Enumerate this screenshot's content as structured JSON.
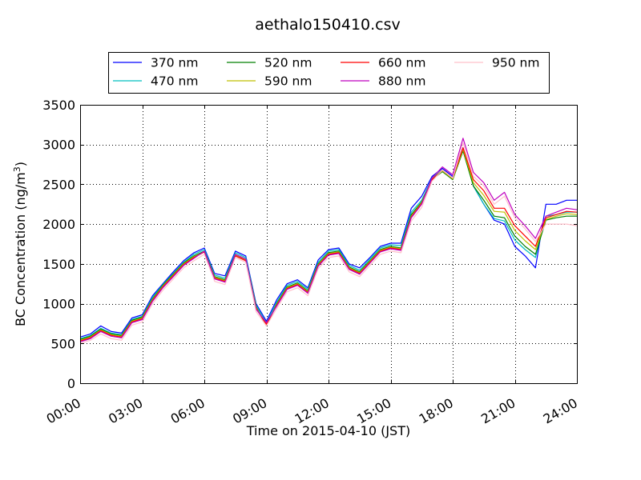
{
  "chart_data": {
    "type": "line",
    "title": "aethalo150410.csv",
    "xlabel": "Time on 2015-04-10 (JST)",
    "ylabel": {
      "prefix": "BC Concentration (ng/m",
      "sup": "3",
      "suffix": ")"
    },
    "xlim": [
      "00:00",
      "24:00"
    ],
    "ylim": [
      0,
      3500
    ],
    "x_ticks": [
      "00:00",
      "03:00",
      "06:00",
      "09:00",
      "12:00",
      "15:00",
      "18:00",
      "21:00",
      "24:00"
    ],
    "y_ticks": [
      0,
      500,
      1000,
      1500,
      2000,
      2500,
      3000,
      3500
    ],
    "grid": true,
    "legend_position": "top",
    "x": [
      "00:00",
      "00:30",
      "01:00",
      "01:30",
      "02:00",
      "02:30",
      "03:00",
      "03:30",
      "04:00",
      "04:30",
      "05:00",
      "05:30",
      "06:00",
      "06:30",
      "07:00",
      "07:30",
      "08:00",
      "08:30",
      "09:00",
      "09:30",
      "10:00",
      "10:30",
      "11:00",
      "11:30",
      "12:00",
      "12:30",
      "13:00",
      "13:30",
      "14:00",
      "14:30",
      "15:00",
      "15:30",
      "16:00",
      "16:30",
      "17:00",
      "17:30",
      "18:00",
      "18:30",
      "19:00",
      "19:30",
      "20:00",
      "20:30",
      "21:00",
      "21:30",
      "22:00",
      "22:30",
      "23:00",
      "23:30",
      "24:00"
    ],
    "series": [
      {
        "name": "370 nm",
        "color": "#0000ff",
        "values": [
          580,
          620,
          720,
          650,
          630,
          820,
          860,
          1100,
          1250,
          1400,
          1540,
          1640,
          1700,
          1380,
          1350,
          1660,
          1600,
          1000,
          780,
          1050,
          1250,
          1300,
          1200,
          1550,
          1680,
          1700,
          1500,
          1450,
          1580,
          1720,
          1760,
          1760,
          2200,
          2350,
          2600,
          2700,
          2600,
          2960,
          2480,
          2250,
          2050,
          2000,
          1720,
          1600,
          1450,
          2250,
          2250,
          2300,
          2300
        ]
      },
      {
        "name": "470 nm",
        "color": "#00bfbf",
        "values": [
          560,
          600,
          690,
          630,
          610,
          800,
          840,
          1080,
          1240,
          1380,
          1520,
          1620,
          1680,
          1360,
          1320,
          1640,
          1580,
          980,
          760,
          1020,
          1230,
          1280,
          1180,
          1520,
          1660,
          1680,
          1480,
          1420,
          1560,
          1700,
          1740,
          1730,
          2150,
          2300,
          2580,
          2680,
          2580,
          2940,
          2480,
          2250,
          2070,
          2040,
          1800,
          1680,
          1580,
          2100,
          2120,
          2150,
          2150
        ]
      },
      {
        "name": "520 nm",
        "color": "#007f00",
        "values": [
          550,
          590,
          680,
          620,
          600,
          790,
          830,
          1060,
          1230,
          1370,
          1510,
          1600,
          1660,
          1340,
          1300,
          1620,
          1560,
          960,
          720,
          1000,
          1210,
          1260,
          1160,
          1500,
          1640,
          1660,
          1460,
          1400,
          1540,
          1680,
          1720,
          1700,
          2120,
          2280,
          2560,
          2660,
          2560,
          2920,
          2480,
          2300,
          2100,
          2080,
          1850,
          1720,
          1620,
          2050,
          2080,
          2100,
          2100
        ]
      },
      {
        "name": "590 nm",
        "color": "#bfbf00",
        "values": [
          540,
          580,
          670,
          610,
          590,
          780,
          820,
          1050,
          1220,
          1360,
          1500,
          1590,
          1650,
          1330,
          1290,
          1610,
          1550,
          950,
          730,
          990,
          1200,
          1250,
          1150,
          1490,
          1630,
          1650,
          1450,
          1390,
          1530,
          1670,
          1710,
          1690,
          2100,
          2270,
          2560,
          2670,
          2570,
          2940,
          2520,
          2360,
          2160,
          2150,
          1920,
          1790,
          1680,
          2060,
          2100,
          2130,
          2120
        ]
      },
      {
        "name": "660 nm",
        "color": "#ff0000",
        "values": [
          530,
          570,
          660,
          600,
          580,
          770,
          810,
          1040,
          1210,
          1350,
          1490,
          1580,
          1650,
          1320,
          1280,
          1600,
          1540,
          940,
          740,
          980,
          1190,
          1240,
          1140,
          1480,
          1620,
          1640,
          1440,
          1380,
          1520,
          1660,
          1700,
          1680,
          2090,
          2260,
          2560,
          2680,
          2580,
          2960,
          2560,
          2420,
          2200,
          2200,
          1980,
          1850,
          1720,
          2080,
          2120,
          2160,
          2150
        ]
      },
      {
        "name": "880 nm",
        "color": "#bf00bf",
        "values": [
          520,
          560,
          650,
          590,
          570,
          760,
          800,
          1030,
          1200,
          1340,
          1480,
          1570,
          1660,
          1310,
          1270,
          1620,
          1560,
          930,
          760,
          970,
          1180,
          1230,
          1130,
          1470,
          1610,
          1630,
          1430,
          1370,
          1510,
          1650,
          1690,
          1670,
          2080,
          2250,
          2580,
          2720,
          2620,
          3080,
          2650,
          2520,
          2300,
          2400,
          2120,
          1980,
          1820,
          2100,
          2150,
          2200,
          2180
        ]
      },
      {
        "name": "950 nm",
        "color": "#ffc0cb",
        "values": [
          500,
          540,
          620,
          560,
          540,
          730,
          770,
          1000,
          1170,
          1310,
          1450,
          1540,
          1620,
          1280,
          1240,
          1580,
          1520,
          900,
          720,
          940,
          1150,
          1200,
          1100,
          1440,
          1580,
          1600,
          1400,
          1340,
          1480,
          1620,
          1660,
          1640,
          2040,
          2210,
          2540,
          2680,
          2580,
          3020,
          2600,
          2480,
          2250,
          2350,
          2080,
          1940,
          1780,
          2000,
          2000,
          2000,
          1980
        ]
      }
    ]
  }
}
